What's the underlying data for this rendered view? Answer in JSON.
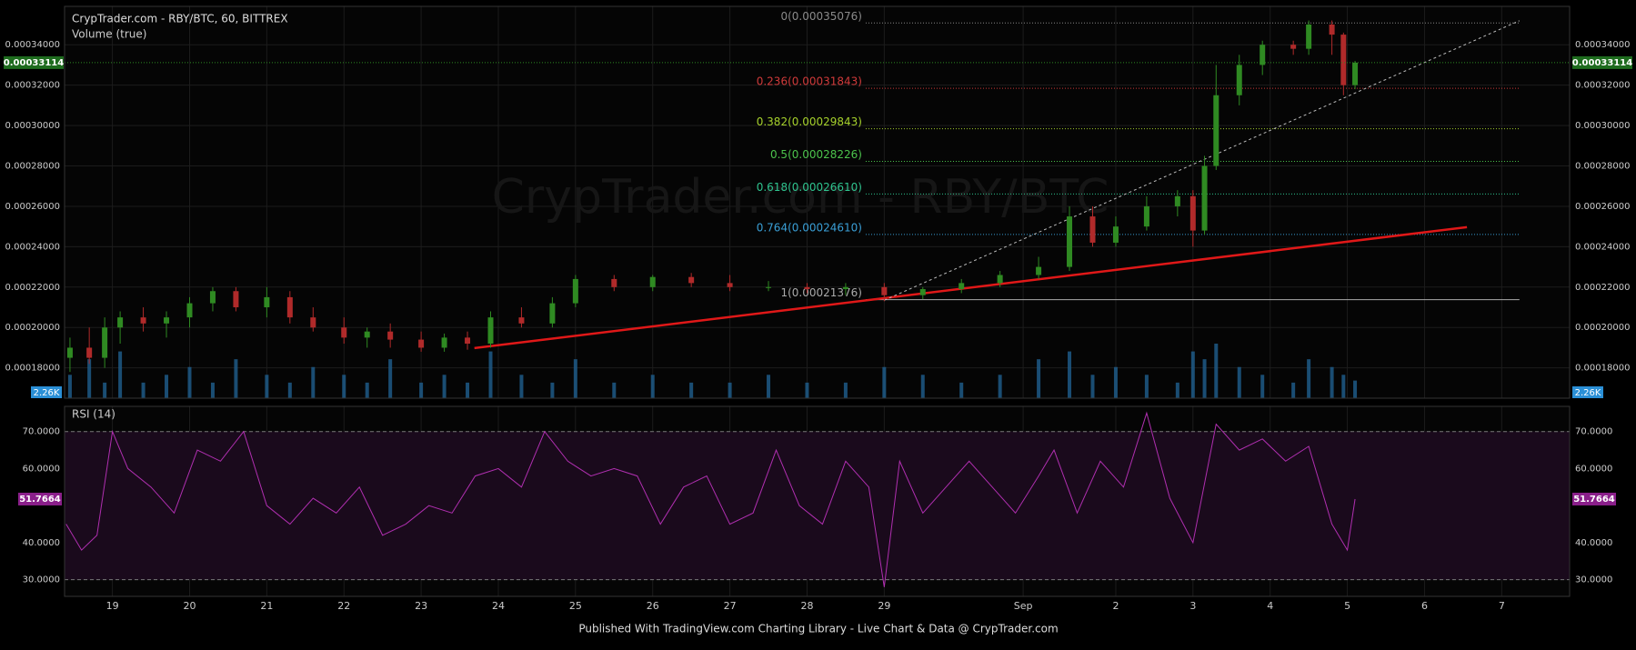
{
  "chart_data": {
    "type": "candlestick",
    "title": "CrypTrader.com - RBY/BTC, 60, BITTREX",
    "subtitle": "Volume (true)",
    "watermark": "CrypTrader.com - RBY/BTC",
    "footer": "Published With TradingView.com Charting Library - Live Chart & Data @ CrypTrader.com",
    "up_color": "#2f8a22",
    "down_color": "#b02a2a",
    "volume_color": "#1f5f8f",
    "xlim": [
      -0.62,
      18.88
    ],
    "xticks": [
      {
        "value": 0,
        "label": "19"
      },
      {
        "value": 1,
        "label": "20"
      },
      {
        "value": 2,
        "label": "21"
      },
      {
        "value": 3,
        "label": "22"
      },
      {
        "value": 4,
        "label": "23"
      },
      {
        "value": 5,
        "label": "24"
      },
      {
        "value": 6,
        "label": "25"
      },
      {
        "value": 7,
        "label": "26"
      },
      {
        "value": 8,
        "label": "27"
      },
      {
        "value": 9,
        "label": "28"
      },
      {
        "value": 10,
        "label": "29"
      },
      {
        "value": 11.8,
        "label": "Sep"
      },
      {
        "value": 13,
        "label": "2"
      },
      {
        "value": 14,
        "label": "3"
      },
      {
        "value": 15,
        "label": "4"
      },
      {
        "value": 16,
        "label": "5"
      },
      {
        "value": 17,
        "label": "6"
      },
      {
        "value": 18,
        "label": "7"
      }
    ],
    "ylim": [
      0.000165,
      0.000359
    ],
    "yticks": [
      {
        "value": 0.00018,
        "label": "0.00018000"
      },
      {
        "value": 0.0002,
        "label": "0.00020000"
      },
      {
        "value": 0.00022,
        "label": "0.00022000"
      },
      {
        "value": 0.00024,
        "label": "0.00024000"
      },
      {
        "value": 0.00026,
        "label": "0.00026000"
      },
      {
        "value": 0.00028,
        "label": "0.00028000"
      },
      {
        "value": 0.0003,
        "label": "0.00030000"
      },
      {
        "value": 0.00032,
        "label": "0.00032000"
      },
      {
        "value": 0.00034,
        "label": "0.00034000"
      }
    ],
    "grid": true,
    "last_price": {
      "value": 0.00033114,
      "label": "0.00033114"
    },
    "last_volume": {
      "value": 2.26,
      "label": "2.26K"
    },
    "candles": {
      "x": [
        -0.55,
        -0.3,
        -0.1,
        0.1,
        0.4,
        0.7,
        1.0,
        1.3,
        1.6,
        2.0,
        2.3,
        2.6,
        3.0,
        3.3,
        3.6,
        4.0,
        4.3,
        4.6,
        4.9,
        5.3,
        5.7,
        6.0,
        6.5,
        7.0,
        7.5,
        8.0,
        8.5,
        9.0,
        9.5,
        10.0,
        10.5,
        11.0,
        11.5,
        12.0,
        12.4,
        12.7,
        13.0,
        13.4,
        13.8,
        14.0,
        14.15,
        14.3,
        14.6,
        14.9,
        15.3,
        15.5,
        15.8,
        15.95,
        16.1
      ],
      "open": [
        0.000185,
        0.00019,
        0.000185,
        0.0002,
        0.000205,
        0.000202,
        0.000205,
        0.000212,
        0.000218,
        0.00021,
        0.000215,
        0.000205,
        0.0002,
        0.000195,
        0.000198,
        0.000194,
        0.00019,
        0.000195,
        0.000192,
        0.000205,
        0.000202,
        0.000212,
        0.000224,
        0.00022,
        0.000225,
        0.000222,
        0.00022,
        0.00022,
        0.000219,
        0.00022,
        0.000216,
        0.000219,
        0.000222,
        0.000226,
        0.00023,
        0.000255,
        0.000242,
        0.00025,
        0.00026,
        0.000265,
        0.000248,
        0.00028,
        0.000315,
        0.00033,
        0.00034,
        0.000338,
        0.00035,
        0.000345,
        0.00032
      ],
      "high": [
        0.000195,
        0.0002,
        0.000205,
        0.000208,
        0.00021,
        0.000208,
        0.000215,
        0.00022,
        0.00022,
        0.00022,
        0.000218,
        0.00021,
        0.000205,
        0.0002,
        0.000202,
        0.000198,
        0.000197,
        0.000198,
        0.000208,
        0.00021,
        0.000215,
        0.000226,
        0.000226,
        0.000226,
        0.000227,
        0.000226,
        0.000223,
        0.000222,
        0.000222,
        0.000222,
        0.00022,
        0.000224,
        0.000228,
        0.000235,
        0.00026,
        0.00026,
        0.000255,
        0.000265,
        0.000268,
        0.000268,
        0.000285,
        0.00033,
        0.000335,
        0.000342,
        0.000342,
        0.000352,
        0.000352,
        0.000346,
        0.000332
      ],
      "low": [
        0.000178,
        0.000182,
        0.00018,
        0.000192,
        0.000198,
        0.000195,
        0.0002,
        0.000208,
        0.000208,
        0.000205,
        0.000202,
        0.000198,
        0.000192,
        0.00019,
        0.00019,
        0.000188,
        0.000188,
        0.000189,
        0.00019,
        0.0002,
        0.0002,
        0.00021,
        0.000218,
        0.000218,
        0.00022,
        0.000218,
        0.000218,
        0.000217,
        0.000216,
        0.000213,
        0.000214,
        0.000217,
        0.00022,
        0.000224,
        0.000228,
        0.00024,
        0.00024,
        0.000248,
        0.000255,
        0.00024,
        0.000246,
        0.000278,
        0.00031,
        0.000325,
        0.000335,
        0.000335,
        0.000335,
        0.000315,
        0.000318
      ],
      "close": [
        0.00019,
        0.000185,
        0.0002,
        0.000205,
        0.000202,
        0.000205,
        0.000212,
        0.000218,
        0.00021,
        0.000215,
        0.000205,
        0.0002,
        0.000195,
        0.000198,
        0.000194,
        0.00019,
        0.000195,
        0.000192,
        0.000205,
        0.000202,
        0.000212,
        0.000224,
        0.00022,
        0.000225,
        0.000222,
        0.00022,
        0.00022,
        0.000219,
        0.00022,
        0.000216,
        0.000219,
        0.000222,
        0.000226,
        0.00023,
        0.000255,
        0.000242,
        0.00025,
        0.00026,
        0.000265,
        0.000248,
        0.00028,
        0.000315,
        0.00033,
        0.00034,
        0.000338,
        0.00035,
        0.000345,
        0.00032,
        0.00033114
      ],
      "volume": [
        3,
        5,
        2,
        6,
        2,
        3,
        4,
        2,
        5,
        3,
        2,
        4,
        3,
        2,
        5,
        2,
        3,
        2,
        6,
        3,
        2,
        5,
        2,
        3,
        2,
        2,
        3,
        2,
        2,
        4,
        3,
        2,
        3,
        5,
        6,
        3,
        4,
        3,
        2,
        6,
        5,
        7,
        4,
        3,
        2,
        5,
        4,
        3,
        2.26
      ]
    },
    "fib": {
      "x": [
        9.76,
        18.23
      ],
      "levels": [
        {
          "label": "0(0.00035076)",
          "value": 0.00035076,
          "color": "#8a8a8a"
        },
        {
          "label": "0.236(0.00031843)",
          "value": 0.00031843,
          "color": "#d03a3a"
        },
        {
          "label": "0.382(0.00029843)",
          "value": 0.00029843,
          "color": "#a6d12c"
        },
        {
          "label": "0.5(0.00028226)",
          "value": 0.00028226,
          "color": "#4cc34c"
        },
        {
          "label": "0.618(0.00026610)",
          "value": 0.0002661,
          "color": "#2fc48f"
        },
        {
          "label": "0.764(0.00024610)",
          "value": 0.0002461,
          "color": "#3a9fd6"
        },
        {
          "label": "1(0.00021376)",
          "value": 0.00021376,
          "color": "#aaaaaa"
        }
      ]
    },
    "trendlines": [
      {
        "x": [
          4.69,
          17.55
        ],
        "y": [
          0.0001898,
          0.0002497
        ],
        "color": "#e01818"
      },
      {
        "x": [
          10.0,
          18.23
        ],
        "y": [
          0.0002135,
          0.0003519
        ],
        "color": "#bbbbbb"
      }
    ],
    "rsi": {
      "title": "RSI (14)",
      "color": "#b02fb0",
      "ylim": [
        25.5,
        76.8
      ],
      "yticks": [
        {
          "value": 30,
          "label": "30.0000"
        },
        {
          "value": 40,
          "label": "40.0000"
        },
        {
          "value": 60,
          "label": "60.0000"
        },
        {
          "value": 70,
          "label": "70.0000"
        }
      ],
      "band": [
        30,
        70
      ],
      "last": {
        "value": 51.7664,
        "label": "51.7664"
      },
      "x": [
        -0.6,
        -0.4,
        -0.2,
        0,
        0.2,
        0.5,
        0.8,
        1.1,
        1.4,
        1.7,
        2.0,
        2.3,
        2.6,
        2.9,
        3.2,
        3.5,
        3.8,
        4.1,
        4.4,
        4.7,
        5.0,
        5.3,
        5.6,
        5.9,
        6.2,
        6.5,
        6.8,
        7.1,
        7.4,
        7.7,
        8.0,
        8.3,
        8.6,
        8.9,
        9.2,
        9.5,
        9.8,
        10.0,
        10.2,
        10.5,
        10.8,
        11.1,
        11.4,
        11.7,
        12.0,
        12.2,
        12.5,
        12.8,
        13.1,
        13.4,
        13.7,
        14.0,
        14.3,
        14.6,
        14.9,
        15.2,
        15.5,
        15.8,
        16.0,
        16.1
      ],
      "values": [
        45,
        38,
        42,
        70,
        60,
        55,
        48,
        65,
        62,
        70,
        50,
        45,
        52,
        48,
        55,
        42,
        45,
        50,
        48,
        58,
        60,
        55,
        70,
        62,
        58,
        60,
        58,
        45,
        55,
        58,
        45,
        48,
        65,
        50,
        45,
        62,
        55,
        28,
        62,
        48,
        55,
        62,
        55,
        48,
        58,
        65,
        48,
        62,
        55,
        75,
        52,
        40,
        72,
        65,
        68,
        62,
        66,
        45,
        38,
        51.7664
      ]
    }
  }
}
